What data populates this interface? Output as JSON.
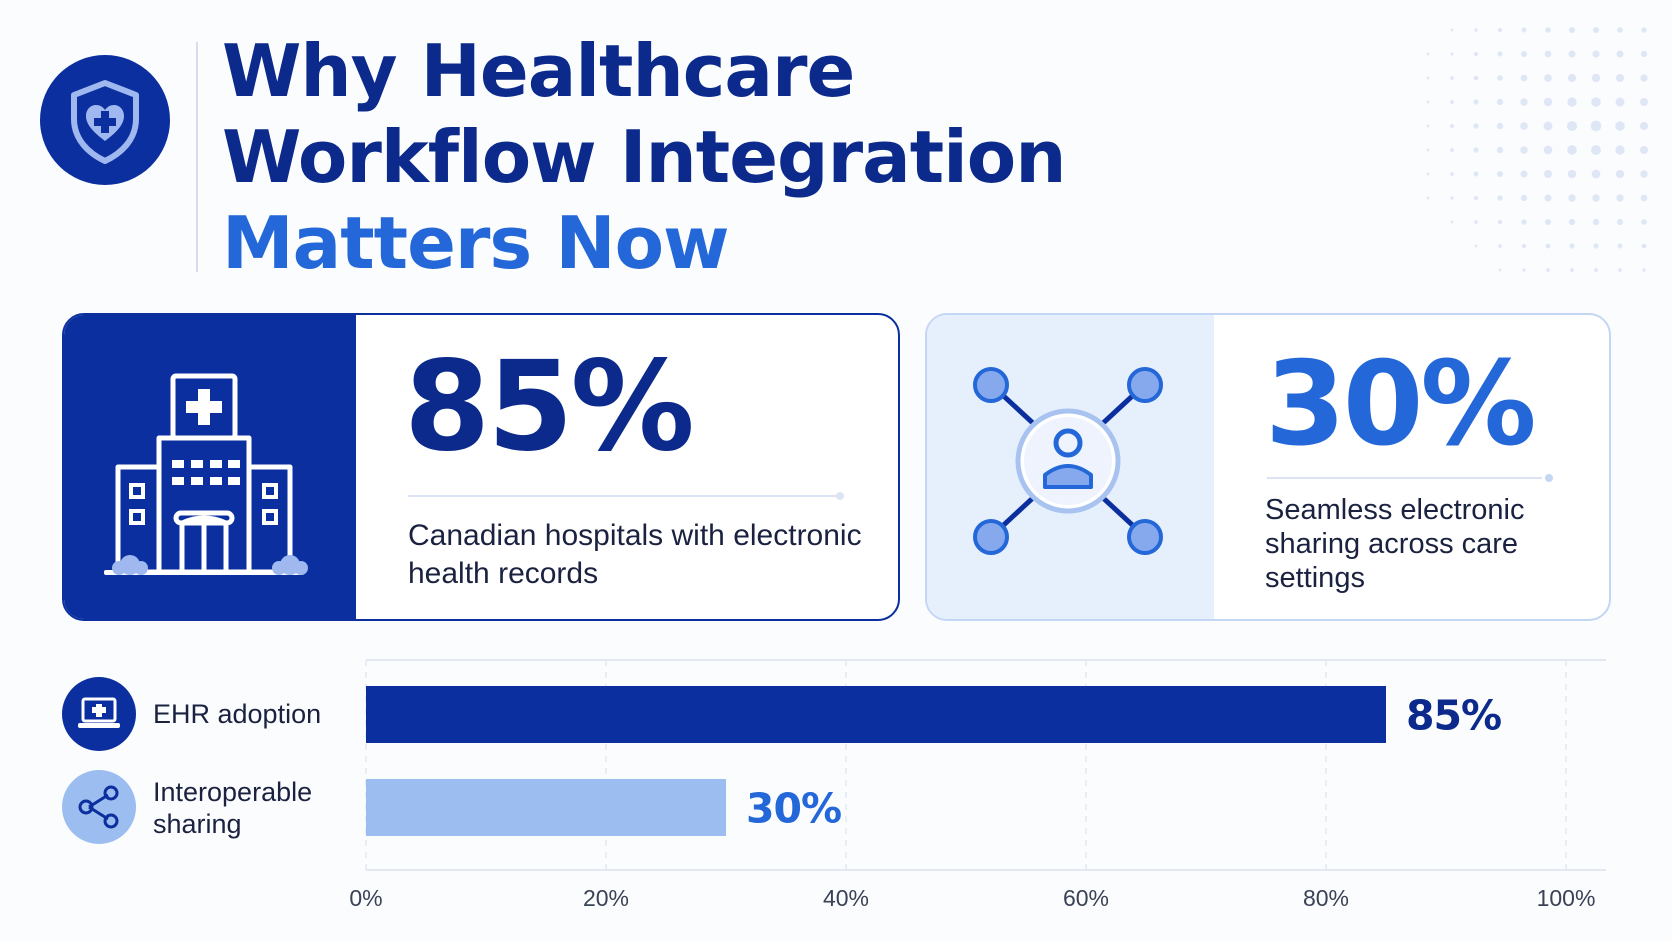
{
  "header": {
    "title_line1": "Why Healthcare",
    "title_line2": "Workflow Integration",
    "title_line3": "Matters Now",
    "badge_icon": "shield-heart-icon"
  },
  "stat_cards": [
    {
      "value": "85%",
      "description": "Canadian hospitals with electronic health records",
      "icon": "hospital-icon"
    },
    {
      "value": "30%",
      "description": "Seamless electronic sharing across care settings",
      "icon": "network-person-icon"
    }
  ],
  "colors": {
    "navy": "#0b2f9e",
    "blue": "#2467d8",
    "light_blue": "#9bbdf0"
  },
  "chart_data": {
    "type": "bar",
    "orientation": "horizontal",
    "categories": [
      "EHR adoption",
      "Interoperable sharing"
    ],
    "values": [
      85,
      30
    ],
    "value_labels": [
      "85%",
      "30%"
    ],
    "icons": [
      "laptop-medical-icon",
      "share-icon"
    ],
    "bar_colors": [
      "#0b2f9e",
      "#9bbdf0"
    ],
    "label_colors": [
      "#0b2a8c",
      "#2467d8"
    ],
    "xlim": [
      0,
      100
    ],
    "xticks": [
      0,
      20,
      40,
      60,
      80,
      100
    ],
    "xtick_labels": [
      "0%",
      "20%",
      "40%",
      "60%",
      "80%",
      "100%"
    ],
    "grid": true
  }
}
